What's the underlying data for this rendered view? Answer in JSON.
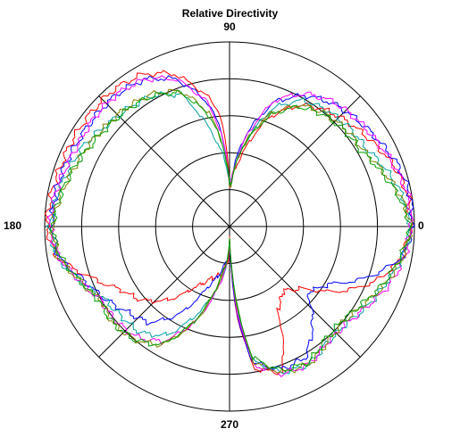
{
  "chart_data": {
    "type": "line",
    "coordinate_system": "polar",
    "title": "Relative Directivity",
    "angle_tick_labels": [
      "0",
      "90",
      "180",
      "270"
    ],
    "angle_unit": "degrees",
    "radial_rings": [
      0.2,
      0.4,
      0.6,
      0.8,
      1.0
    ],
    "radial_range": [
      0,
      1
    ],
    "spokes_every_degrees": 45,
    "grid": true,
    "legend": "none",
    "series": [
      {
        "color": "#ff0000",
        "angles": [
          0,
          10,
          20,
          30,
          40,
          50,
          60,
          70,
          80,
          85,
          88,
          90,
          92,
          95,
          100,
          110,
          120,
          130,
          140,
          150,
          160,
          170,
          180,
          190,
          200,
          210,
          220,
          230,
          240,
          250,
          260,
          265,
          268,
          270,
          272,
          275,
          280,
          290,
          300,
          310,
          320,
          330,
          340,
          350
        ],
        "values": [
          0.98,
          0.98,
          0.95,
          0.9,
          0.86,
          0.82,
          0.76,
          0.63,
          0.4,
          0.3,
          0.25,
          0.22,
          0.4,
          0.62,
          0.72,
          0.88,
          0.95,
          0.97,
          0.97,
          0.97,
          0.97,
          0.98,
          0.99,
          0.95,
          0.8,
          0.68,
          0.62,
          0.52,
          0.38,
          0.3,
          0.26,
          0.2,
          0.18,
          0.07,
          0.2,
          0.5,
          0.78,
          0.84,
          0.52,
          0.45,
          0.52,
          0.7,
          0.85,
          0.95
        ]
      },
      {
        "color": "#0000ff",
        "angles": [
          0,
          10,
          20,
          30,
          40,
          50,
          60,
          70,
          80,
          85,
          88,
          90,
          92,
          95,
          100,
          110,
          120,
          130,
          140,
          150,
          160,
          170,
          180,
          190,
          200,
          210,
          220,
          230,
          240,
          250,
          260,
          265,
          268,
          270,
          272,
          275,
          280,
          290,
          300,
          310,
          320,
          330,
          340,
          350
        ],
        "values": [
          0.99,
          0.99,
          0.97,
          0.93,
          0.9,
          0.87,
          0.82,
          0.72,
          0.5,
          0.35,
          0.24,
          0.22,
          0.34,
          0.52,
          0.68,
          0.85,
          0.92,
          0.94,
          0.94,
          0.94,
          0.95,
          0.96,
          0.96,
          0.94,
          0.84,
          0.78,
          0.72,
          0.68,
          0.55,
          0.35,
          0.24,
          0.18,
          0.15,
          0.07,
          0.2,
          0.5,
          0.75,
          0.82,
          0.82,
          0.7,
          0.55,
          0.62,
          0.8,
          0.95
        ]
      },
      {
        "color": "#00a0a0",
        "angles": [
          0,
          10,
          20,
          30,
          40,
          50,
          60,
          70,
          80,
          85,
          88,
          90,
          92,
          95,
          100,
          110,
          120,
          130,
          140,
          150,
          160,
          170,
          180,
          190,
          200,
          210,
          220,
          230,
          240,
          250,
          260,
          265,
          268,
          270,
          272,
          275,
          280,
          290,
          300,
          310,
          320,
          330,
          340,
          350
        ],
        "values": [
          0.98,
          0.95,
          0.9,
          0.85,
          0.84,
          0.82,
          0.79,
          0.68,
          0.45,
          0.33,
          0.25,
          0.24,
          0.3,
          0.38,
          0.5,
          0.76,
          0.82,
          0.84,
          0.86,
          0.9,
          0.92,
          0.95,
          0.97,
          0.95,
          0.86,
          0.78,
          0.76,
          0.75,
          0.68,
          0.5,
          0.32,
          0.22,
          0.15,
          0.07,
          0.16,
          0.42,
          0.74,
          0.84,
          0.86,
          0.82,
          0.82,
          0.86,
          0.9,
          0.95
        ]
      },
      {
        "color": "#ff00ff",
        "angles": [
          0,
          10,
          20,
          30,
          40,
          50,
          60,
          70,
          80,
          85,
          88,
          90,
          92,
          95,
          100,
          110,
          120,
          130,
          140,
          150,
          160,
          170,
          180,
          190,
          200,
          210,
          220,
          230,
          240,
          250,
          260,
          265,
          268,
          270,
          272,
          275,
          280,
          290,
          300,
          310,
          320,
          330,
          340,
          350
        ],
        "values": [
          0.98,
          0.98,
          0.95,
          0.92,
          0.9,
          0.88,
          0.83,
          0.73,
          0.48,
          0.33,
          0.24,
          0.22,
          0.34,
          0.5,
          0.68,
          0.85,
          0.92,
          0.94,
          0.94,
          0.93,
          0.94,
          0.96,
          0.97,
          0.94,
          0.86,
          0.8,
          0.8,
          0.78,
          0.72,
          0.55,
          0.32,
          0.22,
          0.15,
          0.07,
          0.17,
          0.45,
          0.76,
          0.85,
          0.86,
          0.82,
          0.82,
          0.86,
          0.92,
          0.96
        ]
      },
      {
        "color": "#808000",
        "angles": [
          0,
          10,
          20,
          30,
          40,
          50,
          60,
          70,
          80,
          85,
          88,
          90,
          92,
          95,
          100,
          110,
          120,
          130,
          140,
          150,
          160,
          170,
          180,
          190,
          200,
          210,
          220,
          230,
          240,
          250,
          260,
          265,
          268,
          270,
          272,
          275,
          280,
          290,
          300,
          310,
          320,
          330,
          340,
          350
        ],
        "values": [
          0.98,
          0.94,
          0.88,
          0.83,
          0.82,
          0.8,
          0.76,
          0.65,
          0.45,
          0.32,
          0.23,
          0.22,
          0.32,
          0.45,
          0.62,
          0.78,
          0.83,
          0.85,
          0.86,
          0.88,
          0.9,
          0.93,
          0.96,
          0.94,
          0.86,
          0.8,
          0.82,
          0.8,
          0.74,
          0.55,
          0.3,
          0.2,
          0.14,
          0.07,
          0.15,
          0.42,
          0.74,
          0.84,
          0.86,
          0.82,
          0.8,
          0.84,
          0.9,
          0.95
        ]
      },
      {
        "color": "#00a000",
        "angles": [
          0,
          10,
          20,
          30,
          40,
          50,
          60,
          70,
          80,
          85,
          88,
          90,
          92,
          95,
          100,
          110,
          120,
          130,
          140,
          150,
          160,
          170,
          180,
          190,
          200,
          210,
          220,
          230,
          240,
          250,
          260,
          265,
          268,
          270,
          272,
          275,
          280,
          290,
          300,
          310,
          320,
          330,
          340,
          350
        ],
        "values": [
          0.98,
          0.93,
          0.87,
          0.82,
          0.81,
          0.79,
          0.75,
          0.64,
          0.45,
          0.32,
          0.23,
          0.22,
          0.32,
          0.45,
          0.6,
          0.77,
          0.82,
          0.84,
          0.85,
          0.87,
          0.9,
          0.93,
          0.96,
          0.93,
          0.86,
          0.81,
          0.82,
          0.8,
          0.74,
          0.54,
          0.28,
          0.19,
          0.13,
          0.07,
          0.14,
          0.4,
          0.72,
          0.83,
          0.85,
          0.8,
          0.79,
          0.83,
          0.89,
          0.94
        ]
      }
    ]
  }
}
